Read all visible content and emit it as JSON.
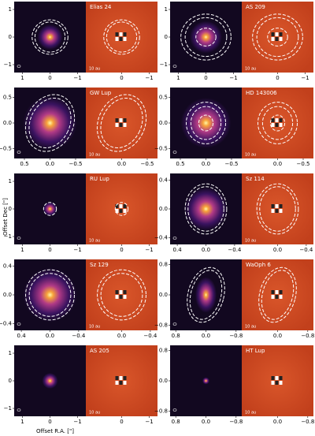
{
  "axis_labels": {
    "y": "Offset Dec [\"]",
    "x": "Offset R.A. [\"]"
  },
  "panels": [
    {
      "name": "Elias 24",
      "scale_bar": "10 au",
      "lim": 1.3,
      "yticks": [
        1,
        0,
        {
          "value": -1,
          "label": "−1"
        }
      ],
      "xticks": [
        1,
        0,
        {
          "value": -1,
          "label": "−1"
        }
      ],
      "xticks_residual": [
        0,
        {
          "value": -1,
          "label": "−1"
        }
      ]
    },
    {
      "name": "AS 209",
      "scale_bar": "10 au",
      "lim": 1.3,
      "yticks": [
        1,
        0,
        {
          "value": -1,
          "label": "−1"
        }
      ],
      "xticks": [
        1,
        0,
        {
          "value": -1,
          "label": "−1"
        }
      ],
      "xticks_residual": [
        0,
        {
          "value": -1,
          "label": "−1"
        }
      ]
    },
    {
      "name": "GW Lup",
      "scale_bar": "10 au",
      "lim": 0.7,
      "yticks": [
        0.5,
        {
          "value": 0,
          "label": "0.0"
        },
        {
          "value": -0.5,
          "label": "−0.5"
        }
      ],
      "xticks": [
        0.5,
        {
          "value": 0,
          "label": "0.0"
        },
        {
          "value": -0.5,
          "label": "−0.5"
        }
      ],
      "xticks_residual": [
        {
          "value": 0,
          "label": "0.0"
        },
        {
          "value": -0.5,
          "label": "−0.5"
        }
      ]
    },
    {
      "name": "HD 143006",
      "scale_bar": "10 au",
      "lim": 0.7,
      "yticks": [
        0.5,
        {
          "value": 0,
          "label": "0.0"
        },
        {
          "value": -0.5,
          "label": "−0.5"
        }
      ],
      "xticks": [
        0.5,
        {
          "value": 0,
          "label": "0.0"
        },
        {
          "value": -0.5,
          "label": "−0.5"
        }
      ],
      "xticks_residual": [
        {
          "value": 0,
          "label": "0.0"
        },
        {
          "value": -0.5,
          "label": "−0.5"
        }
      ]
    },
    {
      "name": "RU Lup",
      "scale_bar": "10 au",
      "lim": 1.3,
      "yticks": [
        1,
        0,
        {
          "value": -1,
          "label": "−1"
        }
      ],
      "xticks": [
        1,
        0,
        {
          "value": -1,
          "label": "−1"
        }
      ],
      "xticks_residual": [
        0,
        {
          "value": -1,
          "label": "−1"
        }
      ]
    },
    {
      "name": "Sz 114",
      "scale_bar": "10 au",
      "lim": 0.5,
      "yticks": [
        0.4,
        {
          "value": 0,
          "label": "0.0"
        },
        {
          "value": -0.4,
          "label": "−0.4"
        }
      ],
      "xticks": [
        0.4,
        {
          "value": 0,
          "label": "0.0"
        },
        {
          "value": -0.4,
          "label": "−0.4"
        }
      ],
      "xticks_residual": [
        {
          "value": 0,
          "label": "0.0"
        },
        {
          "value": -0.4,
          "label": "−0.4"
        }
      ]
    },
    {
      "name": "Sz 129",
      "scale_bar": "10 au",
      "lim": 0.5,
      "yticks": [
        0.4,
        {
          "value": 0,
          "label": "0.0"
        },
        {
          "value": -0.4,
          "label": "−0.4"
        }
      ],
      "xticks": [
        0.4,
        {
          "value": 0,
          "label": "0.0"
        },
        {
          "value": -0.4,
          "label": "−0.4"
        }
      ],
      "xticks_residual": [
        {
          "value": 0,
          "label": "0.0"
        },
        {
          "value": -0.4,
          "label": "−0.4"
        }
      ]
    },
    {
      "name": "WaOph 6",
      "scale_bar": "10 au",
      "lim": 0.95,
      "yticks": [
        0.8,
        {
          "value": 0,
          "label": "0.0"
        },
        {
          "value": -0.8,
          "label": "−0.8"
        }
      ],
      "xticks": [
        0.8,
        {
          "value": 0,
          "label": "0.0"
        },
        {
          "value": -0.8,
          "label": "−0.8"
        }
      ],
      "xticks_residual": [
        {
          "value": 0,
          "label": "0.0"
        },
        {
          "value": -0.8,
          "label": "−0.8"
        }
      ]
    },
    {
      "name": "AS 205",
      "scale_bar": "10 au",
      "lim": 1.3,
      "yticks": [
        1,
        0,
        {
          "value": -1,
          "label": "−1"
        }
      ],
      "xticks": [
        1,
        0,
        {
          "value": -1,
          "label": "−1"
        }
      ],
      "xticks_residual": [
        0,
        {
          "value": -1,
          "label": "−1"
        }
      ]
    },
    {
      "name": "HT Lup",
      "scale_bar": "10 au",
      "lim": 0.95,
      "yticks": [
        0.8,
        {
          "value": 0,
          "label": "0.0"
        },
        {
          "value": -0.8,
          "label": "−0.8"
        }
      ],
      "xticks": [
        0.8,
        {
          "value": 0,
          "label": "0.0"
        },
        {
          "value": -0.8,
          "label": "−0.8"
        }
      ],
      "xticks_residual": [
        {
          "value": 0,
          "label": "0.0"
        },
        {
          "value": -0.8,
          "label": "−0.8"
        }
      ]
    }
  ]
}
